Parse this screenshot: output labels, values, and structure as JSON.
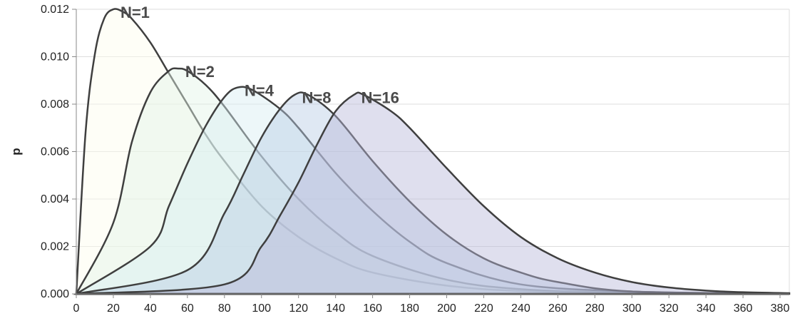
{
  "chart_data": {
    "type": "area",
    "xlabel": "",
    "ylabel": "p",
    "xlim": [
      0,
      385
    ],
    "ylim": [
      0,
      0.012
    ],
    "x_ticks": [
      "0",
      "20",
      "40",
      "60",
      "80",
      "100",
      "120",
      "140",
      "160",
      "180",
      "200",
      "220",
      "240",
      "260",
      "280",
      "300",
      "320",
      "340",
      "360",
      "380"
    ],
    "y_ticks": [
      "0.000",
      "0.002",
      "0.004",
      "0.006",
      "0.008",
      "0.010",
      "0.012"
    ],
    "grid": "horizontal",
    "series": [
      {
        "name": "N=1",
        "color": "#fdfdee",
        "values": [
          [
            0,
            0
          ],
          [
            5,
            0.0068
          ],
          [
            10,
            0.0101
          ],
          [
            15,
            0.0116
          ],
          [
            20,
            0.012
          ],
          [
            25,
            0.0119
          ],
          [
            30,
            0.0116
          ],
          [
            40,
            0.0106
          ],
          [
            50,
            0.0093
          ],
          [
            60,
            0.008
          ],
          [
            70,
            0.0067
          ],
          [
            80,
            0.0056
          ],
          [
            100,
            0.0037
          ],
          [
            120,
            0.0024
          ],
          [
            140,
            0.0015
          ],
          [
            160,
            0.0009
          ],
          [
            200,
            0.00035
          ],
          [
            240,
            0.00012
          ],
          [
            300,
            3e-05
          ],
          [
            385,
            0.0
          ]
        ]
      },
      {
        "name": "N=2",
        "color": "#e3f3e6",
        "values": [
          [
            0,
            0
          ],
          [
            20,
            0.003
          ],
          [
            30,
            0.0064
          ],
          [
            40,
            0.0085
          ],
          [
            50,
            0.0094
          ],
          [
            55,
            0.0095
          ],
          [
            60,
            0.0094
          ],
          [
            70,
            0.0088
          ],
          [
            80,
            0.0079
          ],
          [
            100,
            0.0058
          ],
          [
            120,
            0.004
          ],
          [
            140,
            0.0026
          ],
          [
            160,
            0.0016
          ],
          [
            200,
            0.0006
          ],
          [
            240,
            0.0002
          ],
          [
            300,
            5e-05
          ],
          [
            385,
            0.0
          ]
        ]
      },
      {
        "name": "N=4",
        "color": "#d6eef2",
        "values": [
          [
            0,
            0
          ],
          [
            40,
            0.002
          ],
          [
            50,
            0.0037
          ],
          [
            60,
            0.0055
          ],
          [
            70,
            0.0071
          ],
          [
            80,
            0.0083
          ],
          [
            87,
            0.0087
          ],
          [
            95,
            0.0086
          ],
          [
            110,
            0.0078
          ],
          [
            120,
            0.007
          ],
          [
            140,
            0.0051
          ],
          [
            160,
            0.0035
          ],
          [
            180,
            0.0022
          ],
          [
            200,
            0.0013
          ],
          [
            240,
            0.0004
          ],
          [
            300,
            0.0001
          ],
          [
            385,
            0.0
          ]
        ]
      },
      {
        "name": "N=8",
        "color": "#b8cce4",
        "values": [
          [
            0,
            0
          ],
          [
            60,
            0.001
          ],
          [
            80,
            0.0034
          ],
          [
            90,
            0.005
          ],
          [
            100,
            0.0066
          ],
          [
            110,
            0.0078
          ],
          [
            118,
            0.0084
          ],
          [
            125,
            0.0084
          ],
          [
            140,
            0.0075
          ],
          [
            160,
            0.0056
          ],
          [
            180,
            0.0039
          ],
          [
            200,
            0.0025
          ],
          [
            220,
            0.0015
          ],
          [
            240,
            0.0009
          ],
          [
            260,
            0.0005
          ],
          [
            300,
            0.0001
          ],
          [
            385,
            0.0
          ]
        ]
      },
      {
        "name": "N=16",
        "color": "#b9b8da",
        "values": [
          [
            0,
            0
          ],
          [
            80,
            0.0004
          ],
          [
            100,
            0.002
          ],
          [
            110,
            0.0033
          ],
          [
            120,
            0.0047
          ],
          [
            130,
            0.0063
          ],
          [
            140,
            0.0077
          ],
          [
            150,
            0.0084
          ],
          [
            155,
            0.0084
          ],
          [
            170,
            0.0077
          ],
          [
            180,
            0.007
          ],
          [
            200,
            0.0053
          ],
          [
            220,
            0.0037
          ],
          [
            240,
            0.0024
          ],
          [
            260,
            0.0015
          ],
          [
            280,
            0.0009
          ],
          [
            300,
            0.0005
          ],
          [
            320,
            0.00027
          ],
          [
            340,
            0.00014
          ],
          [
            360,
            7e-05
          ],
          [
            385,
            3e-05
          ]
        ]
      }
    ]
  }
}
